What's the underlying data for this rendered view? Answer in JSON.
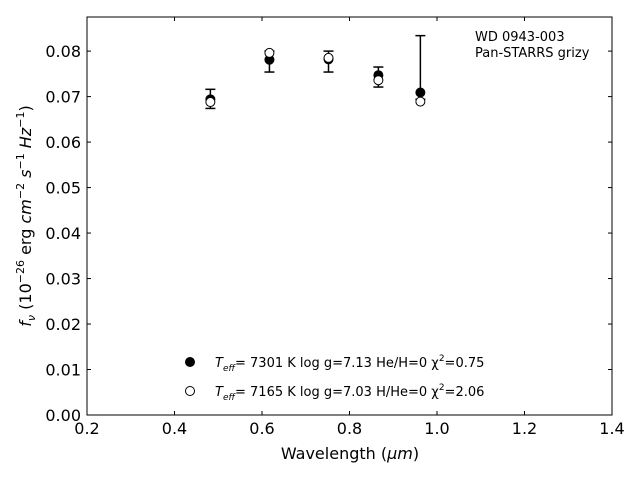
{
  "chart_data": {
    "type": "scatter",
    "annotation_lines": [
      "WD 0943-003",
      "Pan-STARRS grizy"
    ],
    "xlabel_main": "Wavelength (",
    "xlabel_unit": "μm",
    "xlabel_close": ")",
    "ylabel": {
      "f": "f",
      "nu": "ν",
      "open": " (10",
      "exp26": "−26",
      "erg": " erg ",
      "cm": "cm",
      "exp2": "−2",
      "s": " s",
      "exp1a": "−1",
      "hz": " Hz",
      "exp1b": "−1",
      "close": ")"
    },
    "xlim": [
      0.2,
      1.4
    ],
    "ylim": [
      0.0,
      0.0875
    ],
    "xticks": [
      0.2,
      0.4,
      0.6,
      0.8,
      1.0,
      1.2,
      1.4
    ],
    "xtick_labels": [
      "0.2",
      "0.4",
      "0.6",
      "0.8",
      "1.0",
      "1.2",
      "1.4"
    ],
    "yticks": [
      0.0,
      0.01,
      0.02,
      0.03,
      0.04,
      0.05,
      0.06,
      0.07,
      0.08
    ],
    "ytick_labels": [
      "0.00",
      "0.01",
      "0.02",
      "0.03",
      "0.04",
      "0.05",
      "0.06",
      "0.07",
      "0.08"
    ],
    "observed": {
      "x": [
        0.482,
        0.617,
        0.752,
        0.866,
        0.962
      ],
      "y": [
        0.0695,
        0.0777,
        0.0777,
        0.0744,
        0.0708
      ],
      "yerr_low": [
        0.0674,
        0.0754,
        0.0754,
        0.0721,
        0.0694
      ],
      "yerr_high": [
        0.0716,
        0.08,
        0.08,
        0.0765,
        0.0834
      ]
    },
    "series": [
      {
        "marker": "filled",
        "color": "#000000",
        "x": [
          0.482,
          0.617,
          0.752,
          0.866,
          0.962
        ],
        "y": [
          0.0694,
          0.0781,
          0.0782,
          0.0747,
          0.0709
        ],
        "legend": {
          "teff": "T",
          "sub": "eff",
          "value": "=  7301 K  log g=7.13  He/H=0  χ",
          "sup": "2",
          "chi": "=0.75"
        }
      },
      {
        "marker": "open",
        "color": "#000000",
        "x": [
          0.482,
          0.617,
          0.752,
          0.866,
          0.962
        ],
        "y": [
          0.0688,
          0.0796,
          0.0785,
          0.0736,
          0.0689
        ],
        "legend": {
          "teff": "T",
          "sub": "eff",
          "value": "=  7165 K  log g=7.03  H/He=0  χ",
          "sup": "2",
          "chi": "=2.06"
        }
      }
    ],
    "legend_position": "lower-center",
    "grid": false
  }
}
